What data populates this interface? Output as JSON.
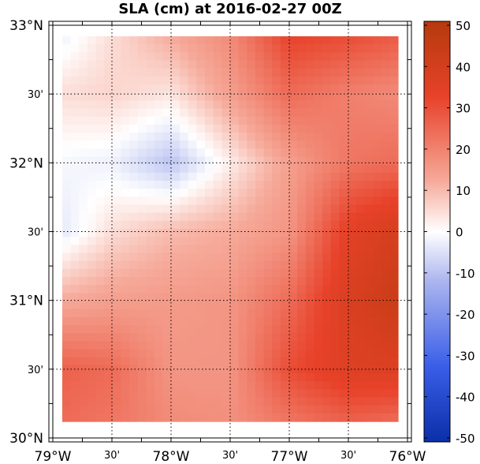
{
  "title": "SLA (cm) at 2016-02-27 00Z",
  "map": {
    "lon_range": [
      -79,
      -76
    ],
    "lat_range": [
      30,
      33
    ],
    "x_ticks": [
      {
        "lon": -79.0,
        "label": "79°W",
        "major": true
      },
      {
        "lon": -78.5,
        "label": "30'",
        "major": false
      },
      {
        "lon": -78.0,
        "label": "78°W",
        "major": true
      },
      {
        "lon": -77.5,
        "label": "30'",
        "major": false
      },
      {
        "lon": -77.0,
        "label": "77°W",
        "major": true
      },
      {
        "lon": -76.5,
        "label": "30'",
        "major": false
      },
      {
        "lon": -76.0,
        "label": "76°W",
        "major": true
      }
    ],
    "y_ticks": [
      {
        "lat": 33.0,
        "label": "33°N",
        "major": true
      },
      {
        "lat": 32.5,
        "label": "30'",
        "major": false
      },
      {
        "lat": 32.0,
        "label": "32°N",
        "major": true
      },
      {
        "lat": 31.5,
        "label": "30'",
        "major": false
      },
      {
        "lat": 31.0,
        "label": "31°N",
        "major": true
      },
      {
        "lat": 30.5,
        "label": "30'",
        "major": false
      },
      {
        "lat": 30.0,
        "label": "30°N",
        "major": true
      }
    ],
    "grid": true,
    "field_extent": {
      "lon": [
        -78.92,
        -76.08
      ],
      "lat": [
        30.12,
        32.92
      ]
    }
  },
  "colorbar": {
    "range": [
      -50,
      50
    ],
    "ticks": [
      "50",
      "40",
      "30",
      "20",
      "10",
      "0",
      "-10",
      "-20",
      "-30",
      "-40",
      "-50"
    ],
    "colors": {
      "low": "#0a2fa8",
      "mid": "#ffffff",
      "high": "#b53a0c"
    }
  },
  "chart_data": {
    "type": "heatmap",
    "title": "SLA (cm) at 2016-02-27 00Z",
    "variable": "SLA (cm)",
    "x": [
      -78.92,
      -78.5,
      -78.0,
      -77.5,
      -77.0,
      -76.5,
      -76.08
    ],
    "y": [
      32.92,
      32.5,
      32.0,
      31.5,
      31.0,
      30.5,
      30.12
    ],
    "values": [
      [
        -2,
        4,
        10,
        16,
        30,
        28,
        25
      ],
      [
        4,
        5,
        3,
        12,
        22,
        18,
        16
      ],
      [
        -1,
        -2,
        -8,
        2,
        12,
        20,
        22
      ],
      [
        -3,
        4,
        8,
        10,
        14,
        32,
        38
      ],
      [
        10,
        12,
        13,
        14,
        22,
        36,
        42
      ],
      [
        24,
        22,
        14,
        14,
        28,
        34,
        35
      ],
      [
        22,
        20,
        16,
        15,
        20,
        24,
        22
      ]
    ],
    "xlabel": "",
    "ylabel": "",
    "zlim": [
      -50,
      50
    ]
  }
}
